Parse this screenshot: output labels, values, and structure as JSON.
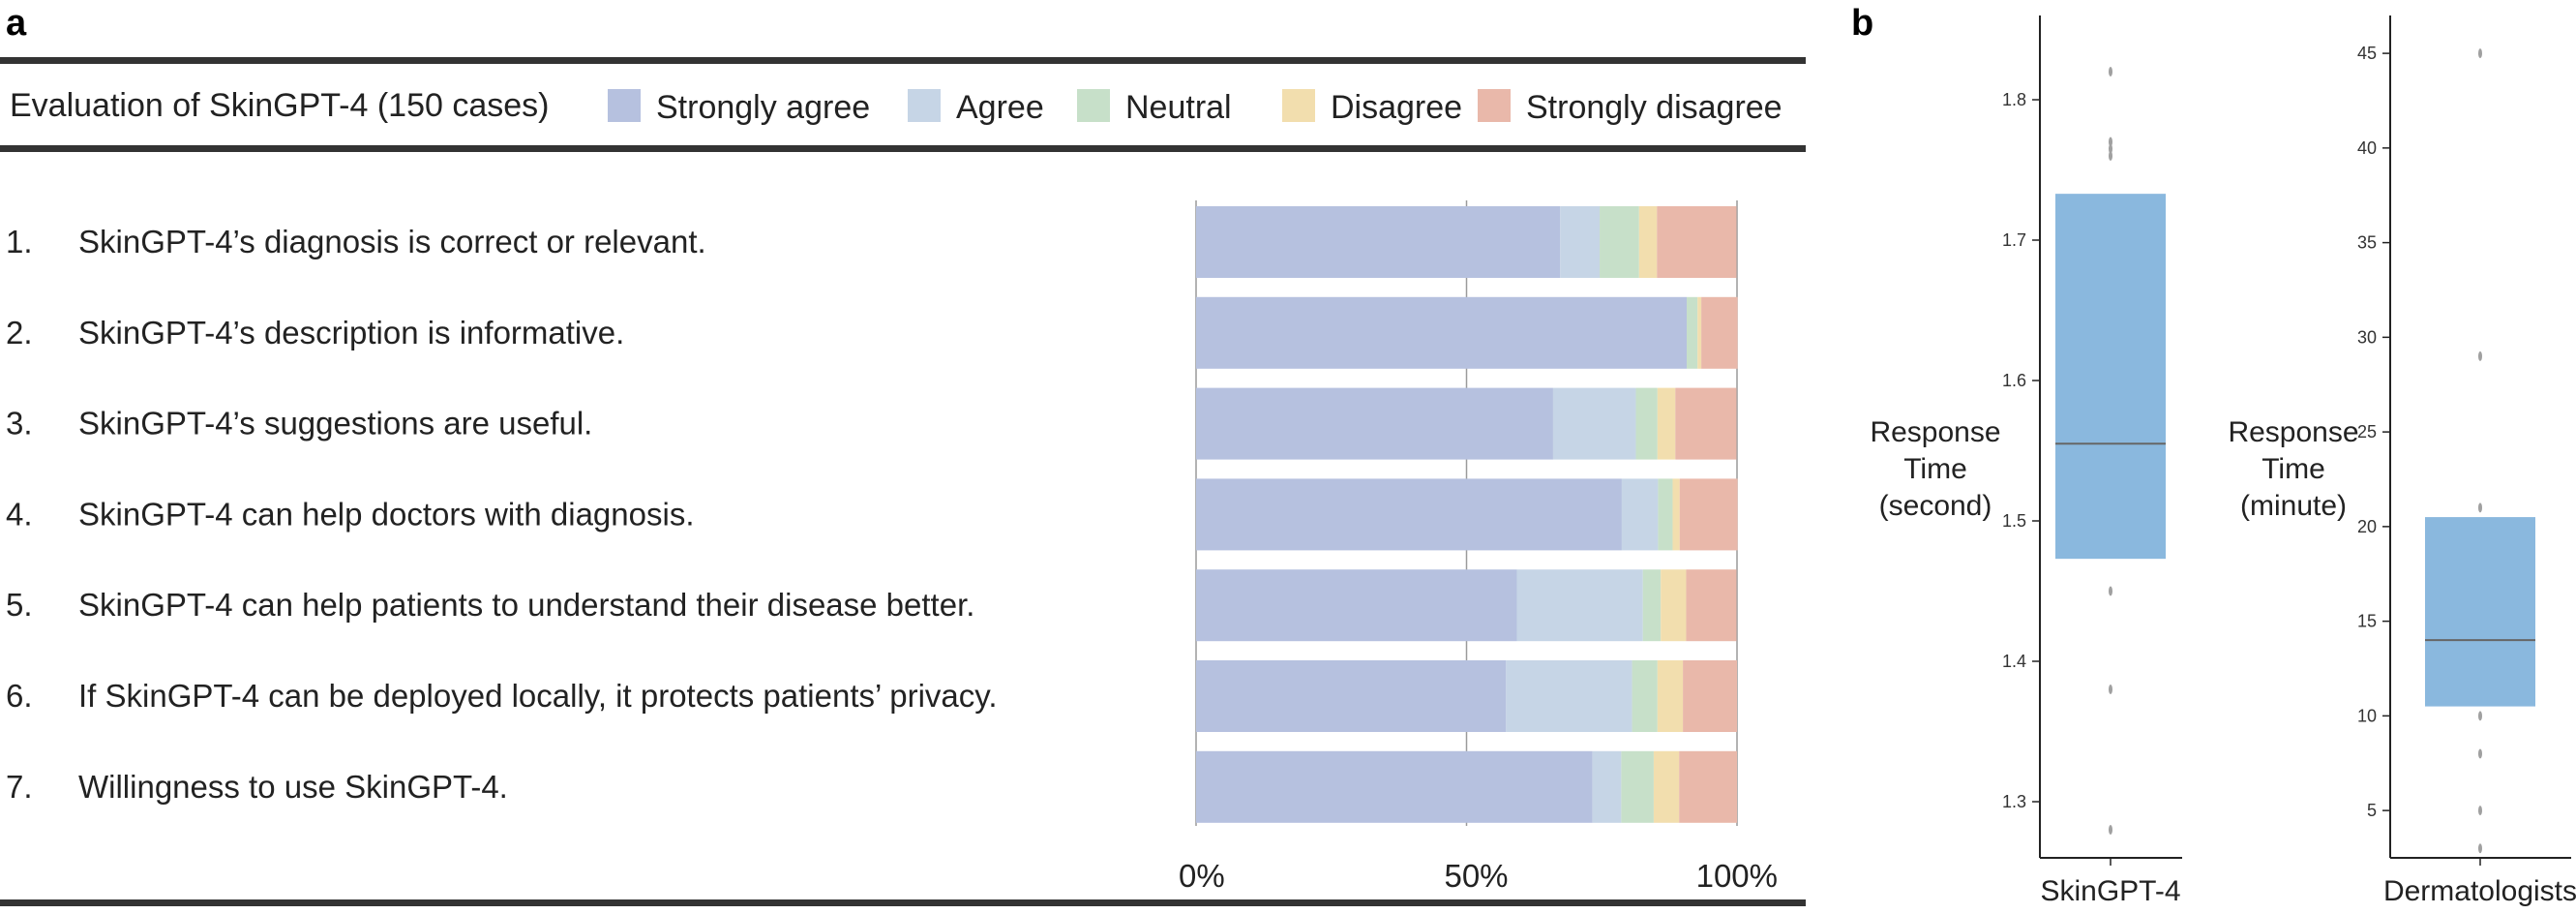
{
  "panel_a": {
    "letter": "a",
    "header_title": "Evaluation of SkinGPT-4 (150 cases)",
    "items": [
      {
        "num": "1.",
        "text": "SkinGPT-4’s diagnosis is correct or relevant."
      },
      {
        "num": "2.",
        "text": "SkinGPT-4’s description is informative."
      },
      {
        "num": "3.",
        "text": "SkinGPT-4’s suggestions are useful."
      },
      {
        "num": "4.",
        "text": "SkinGPT-4 can help doctors with diagnosis."
      },
      {
        "num": "5.",
        "text": "SkinGPT-4 can help patients to understand their disease better."
      },
      {
        "num": "6.",
        "text": "If SkinGPT-4 can be deployed locally, it protects patients’ privacy."
      },
      {
        "num": "7.",
        "text": "Willingness to use SkinGPT-4."
      }
    ]
  },
  "panel_b": {
    "letter": "b"
  },
  "chart_data": [
    {
      "type": "bar",
      "orientation": "horizontal-stacked-percent",
      "title": "Evaluation of SkinGPT-4 (150 cases)",
      "categories": [
        "1.",
        "2.",
        "3.",
        "4.",
        "5.",
        "6.",
        "7."
      ],
      "xticks": [
        "0%",
        "50%",
        "100%"
      ],
      "xlim": [
        0,
        100
      ],
      "legend_position": "top",
      "grid": true,
      "series": [
        {
          "name": "Strongly agree",
          "color": "#b6c1df",
          "values": [
            67.3,
            90.7,
            66.0,
            78.7,
            59.3,
            57.3,
            73.3
          ]
        },
        {
          "name": "Agree",
          "color": "#c6d5e6",
          "values": [
            7.3,
            0.0,
            15.3,
            6.7,
            23.3,
            23.3,
            5.3
          ]
        },
        {
          "name": "Neutral",
          "color": "#c7e0c9",
          "values": [
            7.3,
            2.0,
            4.0,
            2.7,
            3.3,
            4.7,
            6.0
          ]
        },
        {
          "name": "Disagree",
          "color": "#f2deae",
          "values": [
            3.3,
            0.7,
            3.3,
            1.3,
            4.7,
            4.7,
            4.7
          ]
        },
        {
          "name": "Strongly disagree",
          "color": "#e9b8aa",
          "values": [
            14.7,
            6.7,
            11.3,
            10.7,
            9.3,
            10.0,
            10.7
          ]
        }
      ]
    },
    {
      "type": "box",
      "category": "SkinGPT-4",
      "ylabel": "Response\nTime\n(second)",
      "ylim": [
        1.26,
        1.86
      ],
      "yticks": [
        "1.3",
        "1.4",
        "1.5",
        "1.6",
        "1.7",
        "1.8"
      ],
      "color": "#8ab8de",
      "q1": 1.473,
      "median": 1.555,
      "q3": 1.733,
      "outliers": [
        1.82,
        1.77,
        1.765,
        1.76,
        1.45,
        1.38,
        1.28
      ]
    },
    {
      "type": "box",
      "category": "Dermatologists",
      "ylabel": "Response\nTime\n(minute)",
      "ylim": [
        2.5,
        47.0
      ],
      "yticks": [
        "5",
        "10",
        "15",
        "20",
        "25",
        "30",
        "35",
        "40",
        "45"
      ],
      "color": "#8ab8de",
      "q1": 10.5,
      "median": 14.0,
      "q3": 20.5,
      "outliers": [
        45,
        29,
        21,
        10,
        8,
        5,
        3
      ]
    }
  ]
}
